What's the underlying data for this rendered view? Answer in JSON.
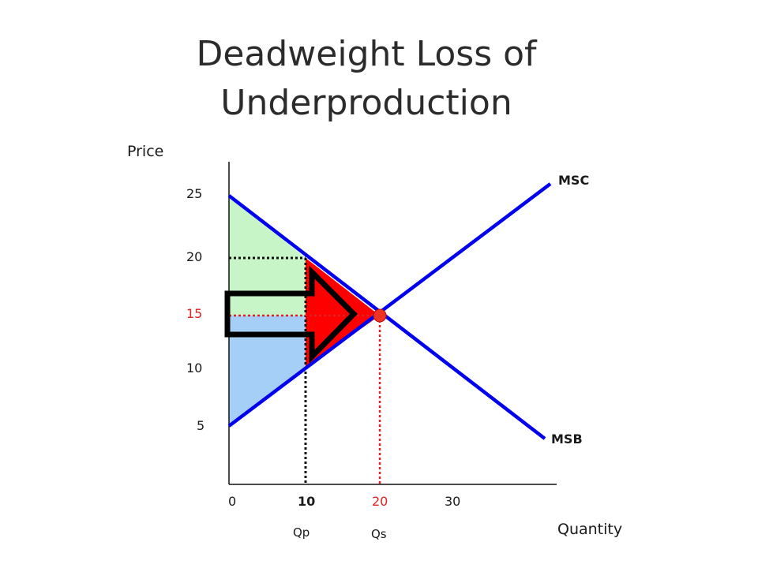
{
  "title_line1": "Deadweight Loss of",
  "title_line2": "Underproduction",
  "axes": {
    "y_title": "Price",
    "x_title": "Quantity",
    "y_ticks": [
      "25",
      "20",
      "15",
      "10",
      "5"
    ],
    "x_ticks": [
      "0",
      "10",
      "20",
      "30"
    ],
    "qp_label": "Qp",
    "qs_label": "Qs"
  },
  "curves": {
    "msc_label": "MSC",
    "msb_label": "MSB"
  },
  "colors": {
    "curve": "#0000ee",
    "deadweight_loss": "#ff0000",
    "consumer_area": "#c8f5c8",
    "producer_area": "#a5cff7",
    "highlight": "#dd2222",
    "equilibrium_point": "#ee3322"
  },
  "chart_data": {
    "type": "line",
    "xlabel": "Quantity",
    "ylabel": "Price",
    "series": [
      {
        "name": "MSC",
        "x": [
          0,
          20
        ],
        "y": [
          5,
          15
        ]
      },
      {
        "name": "MSB",
        "x": [
          0,
          20
        ],
        "y": [
          25,
          15
        ]
      }
    ],
    "equilibrium": {
      "x": 20,
      "y": 15
    },
    "underproduction_quantity": 10,
    "prices_at_qp": [
      20,
      15,
      10
    ]
  }
}
